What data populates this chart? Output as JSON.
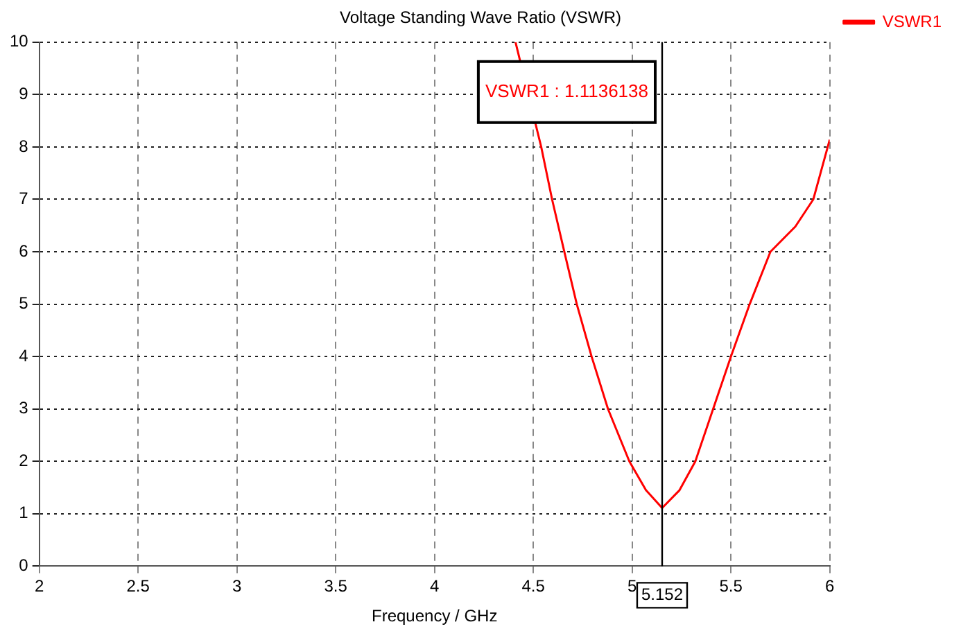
{
  "chart_data": {
    "type": "line",
    "title": "Voltage Standing Wave Ratio (VSWR)",
    "xlabel": "Frequency / GHz",
    "x": [
      4.41,
      4.49,
      4.54,
      4.595,
      4.657,
      4.72,
      4.795,
      4.878,
      4.986,
      5.07,
      5.152,
      5.24,
      5.32,
      5.41,
      5.5,
      5.595,
      5.7,
      5.826,
      5.917,
      6.0
    ],
    "series": [
      {
        "name": "VSWR1",
        "color": "#ff0000",
        "values": [
          10,
          null,
          8,
          7,
          6,
          5,
          4,
          3,
          2,
          1.45,
          1.11,
          1.45,
          2,
          3,
          4,
          5,
          6,
          6.48,
          7,
          8.14
        ]
      }
    ],
    "xlim": [
      2,
      6
    ],
    "xticks": [
      2,
      2.5,
      3,
      3.5,
      4,
      4.5,
      5,
      5.5,
      6
    ],
    "ylim": [
      0,
      10
    ],
    "yticks": [
      0,
      1,
      2,
      3,
      4,
      5,
      6,
      7,
      8,
      9,
      10
    ],
    "grid": true,
    "legend": "top right",
    "marker": "none",
    "line_style": "solid",
    "ref_lines": [
      {
        "axis": "x",
        "value": 5.152,
        "label": "5.152",
        "color": "#000000"
      }
    ],
    "annotations": [
      "VSWR1 : 1.1136138"
    ]
  }
}
